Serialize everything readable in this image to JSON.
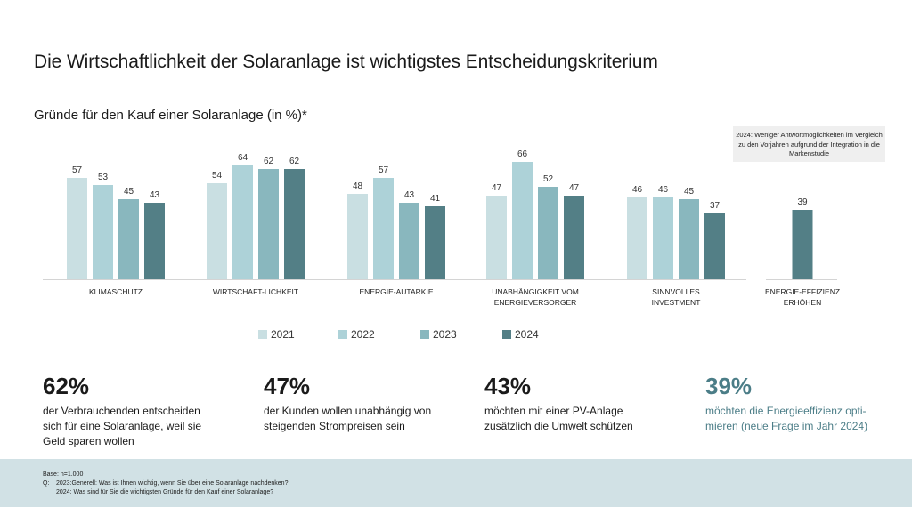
{
  "title": "Die Wirtschaftlichkeit der Solaranlage ist wichtigstes Entscheidungskriterium",
  "subtitle": "Gründe für den Kauf einer Solaranlage (in %)*",
  "note": "2024: Weniger Antwortmöglichkeiten im Vergleich zu den Vorjahren aufgrund der Integration in die Markenstudie",
  "colors": {
    "2021": "#c9dfe2",
    "2022": "#add2d8",
    "2023": "#89b7be",
    "2024": "#537f86",
    "accent": "#4b7d87"
  },
  "chart_data": {
    "type": "bar",
    "title": "Gründe für den Kauf einer Solaranlage (in %)*",
    "xlabel": "",
    "ylabel": "%",
    "ylim": [
      0,
      70
    ],
    "grid": false,
    "legend": "bottom",
    "categories": [
      [
        "KLIMASCHUTZ"
      ],
      [
        "WIRTSCHAFT-LICHKEIT"
      ],
      [
        "ENERGIE-AUTARKIE"
      ],
      [
        "UNABHÄNGIGKEIT VOM",
        "ENERGIEVERSORGER"
      ],
      [
        "SINNVOLLES",
        "INVESTMENT"
      ],
      [
        "ENERGIE-EFFIZIENZ",
        "ERHÖHEN"
      ]
    ],
    "series": [
      {
        "name": "2021",
        "values": [
          57,
          54,
          48,
          47,
          46,
          null
        ]
      },
      {
        "name": "2022",
        "values": [
          53,
          64,
          57,
          66,
          46,
          null
        ]
      },
      {
        "name": "2023",
        "values": [
          45,
          62,
          43,
          52,
          45,
          null
        ]
      },
      {
        "name": "2024",
        "values": [
          43,
          62,
          41,
          47,
          37,
          39
        ]
      }
    ]
  },
  "stats": [
    {
      "value": "62%",
      "text": [
        "der Verbrauchenden entscheiden",
        "sich für eine Solaranlage, weil sie",
        "Geld sparen wollen"
      ]
    },
    {
      "value": "47%",
      "text": [
        "der Kunden wollen unabhängig von",
        "steigenden Strompreisen sein"
      ]
    },
    {
      "value": "43%",
      "text": [
        "möchten mit einer PV-Anlage",
        "zusätzlich die Umwelt schützen"
      ]
    },
    {
      "value": "39%",
      "text": [
        "möchten die Energieeffizienz opti-",
        "mieren (neue Frage im Jahr 2024)"
      ]
    }
  ],
  "footer": {
    "base": "Base: n=1.000",
    "q_label": "Q:",
    "q_2023": "2023:Generell: Was ist Ihnen wichtig, wenn Sie über eine Solaranlage nachdenken?",
    "q_2024": "2024: Was sind für Sie die wichtigsten Gründe für den Kauf einer Solaranlage?"
  }
}
